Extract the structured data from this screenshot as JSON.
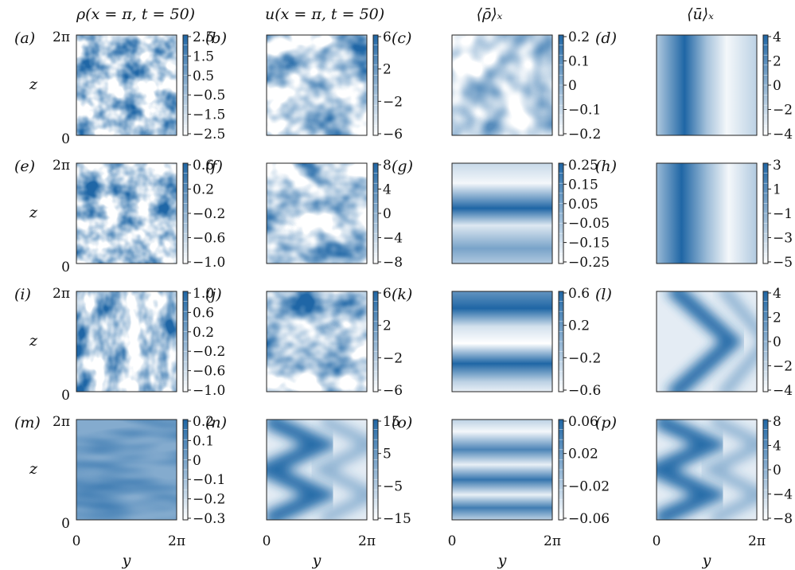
{
  "col_titles": [
    "ρ(x = π, t = 50)",
    "u(x = π, t = 50)",
    "⟨ρ̄⟩ₓ",
    "⟨ū⟩ₓ"
  ],
  "axis": {
    "z_label": "z",
    "y_label": "y",
    "z_top": "2π",
    "z_bottom": "0",
    "y_left": "0",
    "y_right": "2π"
  },
  "colors": {
    "low": "#ffffff",
    "high": "#1f66a5"
  },
  "panels": [
    {
      "id": "(a)",
      "cbar": [
        "2.5",
        "1.5",
        "0.5",
        "−0.5",
        "−1.5",
        "−2.5"
      ],
      "pattern": "turb"
    },
    {
      "id": "(b)",
      "cbar": [
        "6",
        "2",
        "−2",
        "−6"
      ],
      "pattern": "turbL"
    },
    {
      "id": "(c)",
      "cbar": [
        "0.2",
        "0.1",
        "0",
        "−0.1",
        "−0.2"
      ],
      "pattern": "blob"
    },
    {
      "id": "(d)",
      "cbar": [
        "4",
        "2",
        "0",
        "−2",
        "−4"
      ],
      "pattern": "vband"
    },
    {
      "id": "(e)",
      "cbar": [
        "0.6",
        "0.2",
        "−0.2",
        "−0.6",
        "−1.0"
      ],
      "pattern": "turb"
    },
    {
      "id": "(f)",
      "cbar": [
        "8",
        "4",
        "0",
        "−4",
        "−8"
      ],
      "pattern": "turbL"
    },
    {
      "id": "(g)",
      "cbar": [
        "0.25",
        "0.15",
        "0.05",
        "−0.05",
        "−0.15",
        "−0.25"
      ],
      "pattern": "hband1"
    },
    {
      "id": "(h)",
      "cbar": [
        "3",
        "1",
        "−1",
        "−3",
        "−5"
      ],
      "pattern": "vband2"
    },
    {
      "id": "(i)",
      "cbar": [
        "1.0",
        "0.6",
        "0.2",
        "−0.2",
        "−0.6",
        "−1.0"
      ],
      "pattern": "turbH"
    },
    {
      "id": "(j)",
      "cbar": [
        "6",
        "2",
        "−2",
        "−6"
      ],
      "pattern": "turbL"
    },
    {
      "id": "(k)",
      "cbar": [
        "0.6",
        "0.2",
        "−0.2",
        "−0.6"
      ],
      "pattern": "hband2"
    },
    {
      "id": "(l)",
      "cbar": [
        "4",
        "2",
        "0",
        "−2",
        "−4"
      ],
      "pattern": "chevron1"
    },
    {
      "id": "(m)",
      "cbar": [
        "0.2",
        "0.1",
        "0",
        "−0.1",
        "−0.2",
        "−0.3"
      ],
      "pattern": "smooth"
    },
    {
      "id": "(n)",
      "cbar": [
        "15",
        "5",
        "−5",
        "−15"
      ],
      "pattern": "chevron2"
    },
    {
      "id": "(o)",
      "cbar": [
        "0.06",
        "0.02",
        "−0.02",
        "−0.06"
      ],
      "pattern": "hband4"
    },
    {
      "id": "(p)",
      "cbar": [
        "8",
        "4",
        "0",
        "−4",
        "−8"
      ],
      "pattern": "chevron2"
    }
  ]
}
